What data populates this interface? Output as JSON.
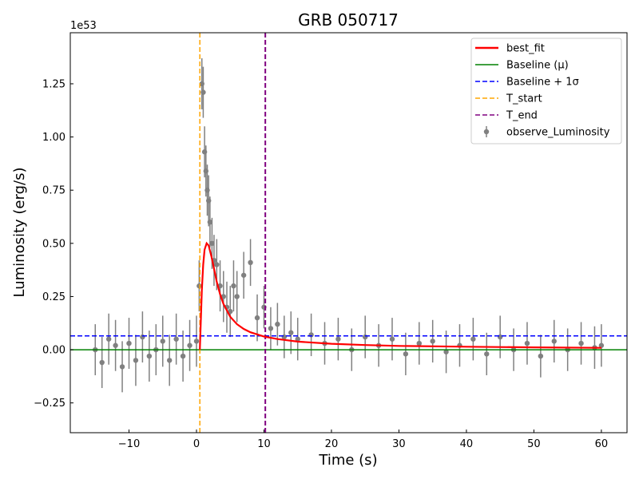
{
  "chart_data": {
    "type": "line",
    "title": "GRB 050717",
    "xlabel": "Time (s)",
    "ylabel": "Luminosity (erg/s)",
    "y_offset_text": "1e53",
    "xlim": [
      -18.7,
      63.8
    ],
    "ylim": [
      -0.39,
      1.49
    ],
    "x_ticks": [
      -10,
      0,
      10,
      20,
      30,
      40,
      50,
      60
    ],
    "x_tick_labels": [
      "−10",
      "0",
      "10",
      "20",
      "30",
      "40",
      "50",
      "60"
    ],
    "y_ticks": [
      -0.25,
      0.0,
      0.25,
      0.5,
      0.75,
      1.0,
      1.25
    ],
    "y_tick_labels": [
      "−0.25",
      "0.00",
      "0.25",
      "0.50",
      "0.75",
      "1.00",
      "1.25"
    ],
    "grid": false,
    "legend_position": "top-right",
    "colors": {
      "observed": "#808080",
      "best_fit": "#ff0000",
      "baseline": "#008000",
      "baseline_sigma": "#0000ff",
      "t_start": "#ffa500",
      "t_end": "#800080"
    },
    "legend": [
      {
        "label": "best_fit",
        "style": "solid-line",
        "color": "#ff0000"
      },
      {
        "label": "Baseline (μ)",
        "style": "solid-line",
        "color": "#008000"
      },
      {
        "label": "Baseline + 1σ",
        "style": "dashed-line",
        "color": "#0000ff"
      },
      {
        "label": "T_start",
        "style": "dashed-line",
        "color": "#ffa500"
      },
      {
        "label": "T_end",
        "style": "dashed-line",
        "color": "#800080"
      },
      {
        "label": "observe_Luminosity",
        "style": "errorbar-marker",
        "color": "#808080"
      }
    ],
    "baseline_mu": 0.0,
    "baseline_plus_1sigma": 0.065,
    "t_start": 0.5,
    "t_end": 10.2,
    "series": [
      {
        "name": "best_fit",
        "x": [
          0.5,
          0.8,
          1.0,
          1.2,
          1.5,
          1.8,
          2.2,
          2.6,
          3.0,
          3.5,
          4.0,
          5.0,
          6.0,
          7.0,
          8.0,
          10.0,
          12.0,
          15.0,
          20.0,
          25.0,
          30.0,
          40.0,
          50.0,
          60.0
        ],
        "y": [
          0.0,
          0.28,
          0.4,
          0.47,
          0.5,
          0.49,
          0.44,
          0.38,
          0.32,
          0.26,
          0.215,
          0.155,
          0.12,
          0.098,
          0.082,
          0.062,
          0.05,
          0.038,
          0.028,
          0.022,
          0.018,
          0.014,
          0.011,
          0.009
        ]
      },
      {
        "name": "observe_Luminosity",
        "x": [
          -15,
          -14,
          -13,
          -12,
          -11,
          -10,
          -9,
          -8,
          -7,
          -6,
          -5,
          -4,
          -3,
          -2,
          -1,
          0,
          0.4,
          0.8,
          1.0,
          1.2,
          1.4,
          1.6,
          1.8,
          2.0,
          2.3,
          2.6,
          3.0,
          3.5,
          4.0,
          4.5,
          5.0,
          5.5,
          6.0,
          7.0,
          8.0,
          9.0,
          10.0,
          11.0,
          12.0,
          13.0,
          14.0,
          15.0,
          17.0,
          19.0,
          21.0,
          23.0,
          25.0,
          27.0,
          29.0,
          31.0,
          33.0,
          35.0,
          37.0,
          39.0,
          41.0,
          43.0,
          45.0,
          47.0,
          49.0,
          51.0,
          53.0,
          55.0,
          57.0,
          59.0,
          60.0
        ],
        "y": [
          0.0,
          -0.06,
          0.05,
          0.02,
          -0.08,
          0.03,
          -0.05,
          0.06,
          -0.03,
          0.0,
          0.04,
          -0.05,
          0.05,
          -0.03,
          0.02,
          0.04,
          0.3,
          1.25,
          1.21,
          0.93,
          0.84,
          0.75,
          0.7,
          0.6,
          0.5,
          0.42,
          0.4,
          0.3,
          0.25,
          0.2,
          0.18,
          0.3,
          0.25,
          0.35,
          0.41,
          0.15,
          0.2,
          0.1,
          0.12,
          0.06,
          0.08,
          0.05,
          0.07,
          0.03,
          0.05,
          0.0,
          0.06,
          0.02,
          0.05,
          -0.02,
          0.03,
          0.04,
          -0.01,
          0.02,
          0.05,
          -0.02,
          0.06,
          0.0,
          0.03,
          -0.03,
          0.04,
          0.0,
          0.03,
          0.01,
          0.02
        ],
        "error": [
          0.12,
          0.12,
          0.12,
          0.12,
          0.12,
          0.12,
          0.12,
          0.12,
          0.12,
          0.12,
          0.12,
          0.12,
          0.12,
          0.12,
          0.12,
          0.12,
          0.12,
          0.12,
          0.12,
          0.12,
          0.12,
          0.12,
          0.12,
          0.12,
          0.12,
          0.12,
          0.12,
          0.12,
          0.12,
          0.12,
          0.12,
          0.12,
          0.12,
          0.11,
          0.11,
          0.11,
          0.1,
          0.1,
          0.1,
          0.1,
          0.1,
          0.1,
          0.1,
          0.1,
          0.1,
          0.1,
          0.1,
          0.1,
          0.1,
          0.1,
          0.1,
          0.1,
          0.1,
          0.1,
          0.1,
          0.1,
          0.1,
          0.1,
          0.1,
          0.1,
          0.1,
          0.1,
          0.1,
          0.1,
          0.1
        ]
      }
    ]
  }
}
